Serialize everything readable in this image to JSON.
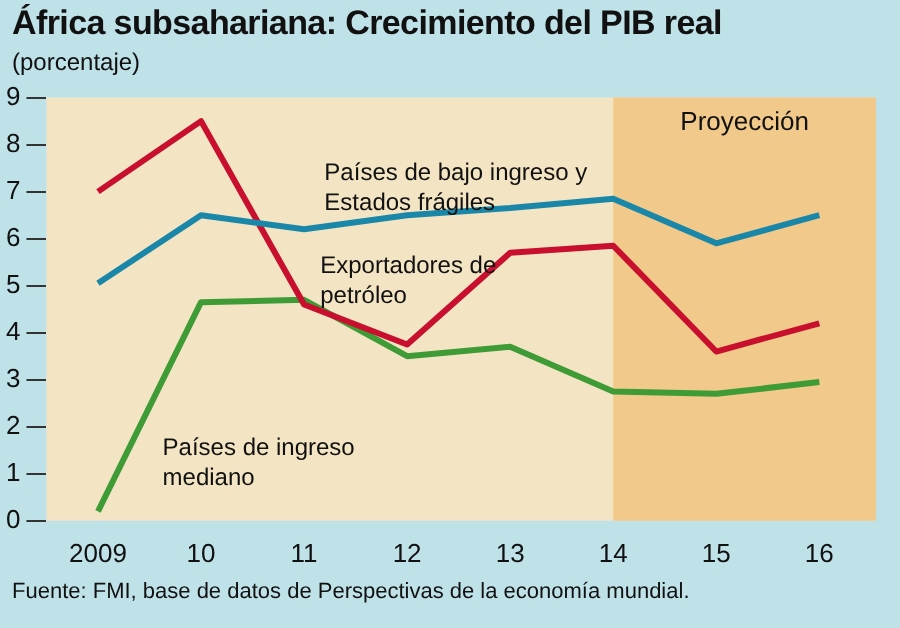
{
  "chart_data": {
    "type": "line",
    "title": "África subsahariana: Crecimiento del PIB real",
    "ylabel": "(porcentaje)",
    "x": [
      2009,
      2010,
      2011,
      2012,
      2013,
      2014,
      2015,
      2016
    ],
    "xlim": [
      2008.5,
      2016.55
    ],
    "xticks": [
      {
        "value": 2009,
        "label": "2009"
      },
      {
        "value": 2010,
        "label": "10"
      },
      {
        "value": 2011,
        "label": "11"
      },
      {
        "value": 2012,
        "label": "12"
      },
      {
        "value": 2013,
        "label": "13"
      },
      {
        "value": 2014,
        "label": "14"
      },
      {
        "value": 2015,
        "label": "15"
      },
      {
        "value": 2016,
        "label": "16"
      }
    ],
    "ylim": [
      0,
      9
    ],
    "yticks": [
      0,
      1,
      2,
      3,
      4,
      5,
      6,
      7,
      8,
      9
    ],
    "series": [
      {
        "name": "Países de bajo ingreso y Estados frágiles",
        "color": "#1b87a8",
        "values": [
          5.05,
          6.5,
          6.2,
          6.5,
          6.65,
          6.85,
          5.9,
          6.5
        ]
      },
      {
        "name": "Exportadores de petróleo",
        "color": "#c8102e",
        "values": [
          7.0,
          8.5,
          4.6,
          3.75,
          5.7,
          5.85,
          3.6,
          4.2
        ]
      },
      {
        "name": "Países de ingreso mediano",
        "color": "#3f9b35",
        "values": [
          0.2,
          4.65,
          4.7,
          3.5,
          3.7,
          2.75,
          2.7,
          2.95
        ]
      }
    ],
    "bands": [
      {
        "axis": "x",
        "from": 2014,
        "to": 2016.55,
        "label": "Proyección",
        "color": "#f1c98a"
      }
    ],
    "grid": false,
    "legend": false,
    "marker": "none",
    "line_style": "solid",
    "annotations": [
      "Fuente: FMI, base de datos de Perspectivas de la economía mundial."
    ]
  }
}
